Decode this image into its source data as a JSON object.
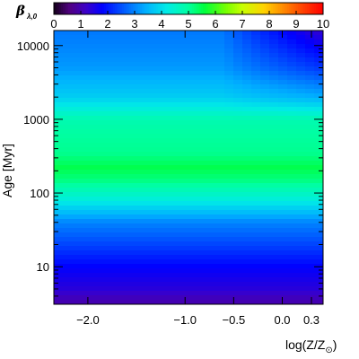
{
  "chart_data": {
    "type": "heatmap",
    "colorbar": {
      "label_symbol": "β",
      "label_subscript": "λ,0",
      "range": [
        0,
        10
      ],
      "ticks": [
        "0",
        "1",
        "2",
        "3",
        "4",
        "5",
        "6",
        "7",
        "8",
        "9",
        "10"
      ],
      "colormap": "rainbow"
    },
    "x_axis": {
      "label_main": "log(Z/Z",
      "label_subscript": "⊙",
      "label_close": ")",
      "range": [
        -2.35,
        0.42
      ],
      "ticks": [
        {
          "value": -2.0,
          "label": "−2.0"
        },
        {
          "value": -1.0,
          "label": "−1.0"
        },
        {
          "value": -0.5,
          "label": "−0.5"
        },
        {
          "value": 0.0,
          "label": "0.0"
        },
        {
          "value": 0.3,
          "label": "0.3"
        }
      ]
    },
    "y_axis": {
      "label": "Age [Myr]",
      "scale": "log",
      "range": [
        3.1,
        16000
      ],
      "ticks": [
        {
          "value": 10,
          "label": "10"
        },
        {
          "value": 100,
          "label": "100"
        },
        {
          "value": 1000,
          "label": "1000"
        },
        {
          "value": 10000,
          "label": "10000"
        }
      ]
    },
    "data_points": [
      {
        "age": 3.5,
        "beta": 1.0
      },
      {
        "age": 5,
        "beta": 1.4
      },
      {
        "age": 10,
        "beta": 1.8
      },
      {
        "age": 20,
        "beta": 2.4
      },
      {
        "age": 40,
        "beta": 3.0
      },
      {
        "age": 80,
        "beta": 4.3
      },
      {
        "age": 150,
        "beta": 5.2
      },
      {
        "age": 220,
        "beta": 5.5
      },
      {
        "age": 350,
        "beta": 5.1
      },
      {
        "age": 600,
        "beta": 5.0
      },
      {
        "age": 1000,
        "beta": 4.8
      },
      {
        "age": 2000,
        "beta": 3.8
      },
      {
        "age": 5000,
        "beta": 3.2
      },
      {
        "age": 10000,
        "beta": 3.0
      },
      {
        "age": 15000,
        "beta": 2.9
      }
    ],
    "metallicity_effect": {
      "onset_age": 1000,
      "onset_logZ": -0.6,
      "max_drop": 1.6
    }
  }
}
